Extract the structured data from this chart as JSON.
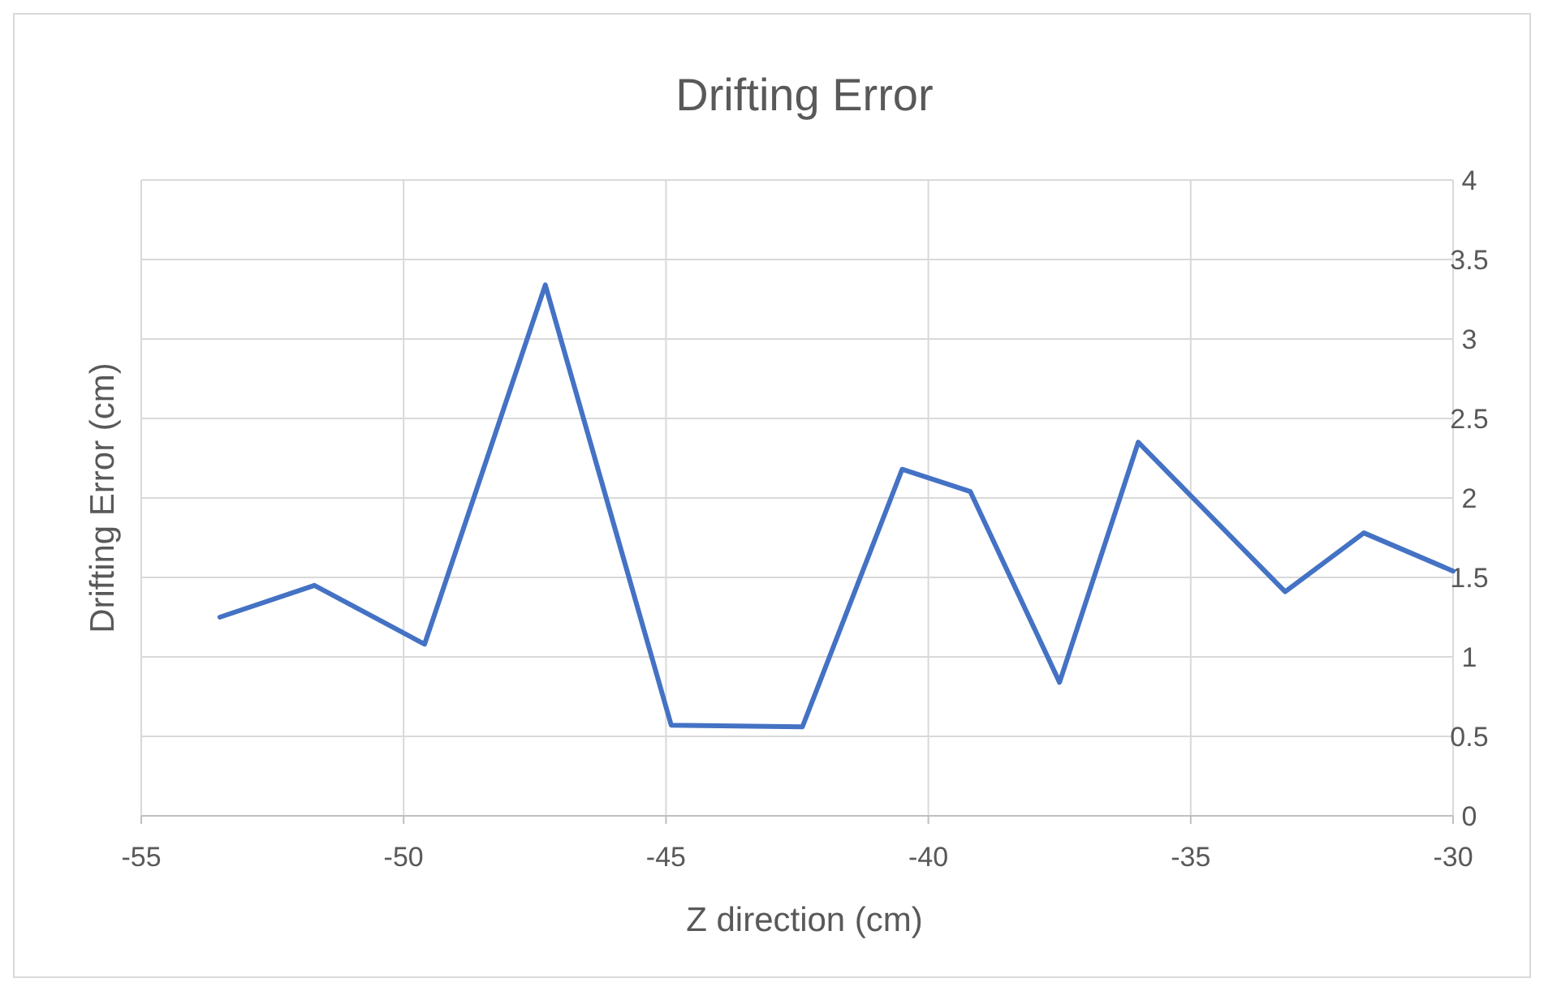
{
  "chart_data": {
    "type": "line",
    "title": "Drifting Error",
    "xlabel": "Z direction (cm)",
    "ylabel": "Drifting Error (cm)",
    "x": [
      -53.5,
      -51.7,
      -49.6,
      -47.3,
      -44.9,
      -42.4,
      -40.5,
      -39.2,
      -37.5,
      -36.0,
      -33.2,
      -31.7,
      -30.0
    ],
    "series": [
      {
        "color": "#4472c4",
        "values": [
          1.25,
          1.45,
          1.08,
          3.34,
          0.57,
          0.56,
          2.18,
          2.04,
          0.84,
          2.35,
          1.41,
          1.78,
          1.54
        ]
      }
    ],
    "xlim": [
      -55,
      -30
    ],
    "xticks": [
      -55,
      -50,
      -45,
      -40,
      -35,
      -30
    ],
    "ylim": [
      0,
      4
    ],
    "yticks": [
      0,
      0.5,
      1,
      1.5,
      2,
      2.5,
      3,
      3.5,
      4
    ],
    "grid": true,
    "marker": "none",
    "line_style": "solid"
  }
}
